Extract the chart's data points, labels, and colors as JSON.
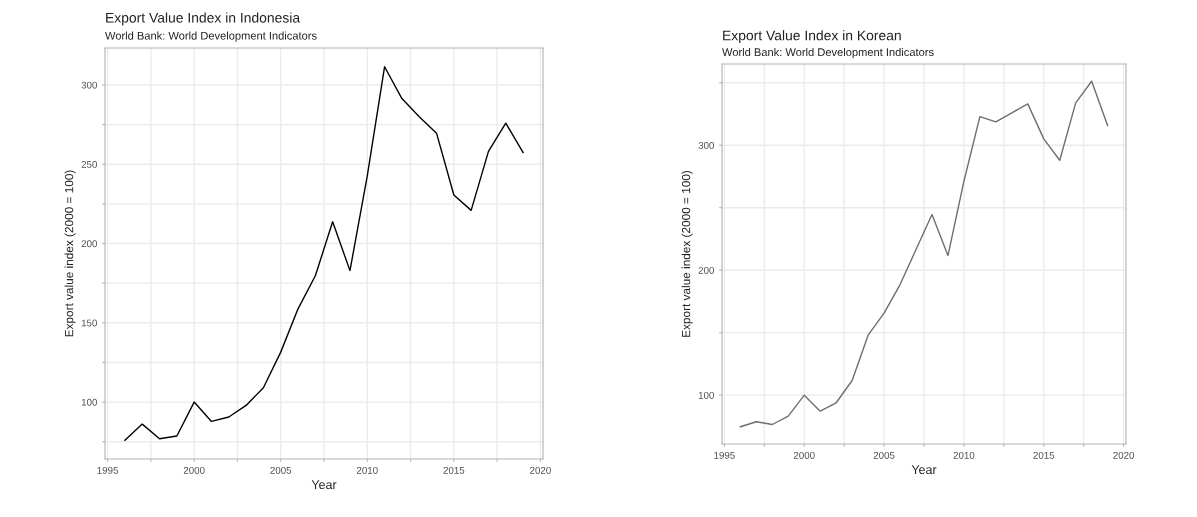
{
  "chart_data": [
    {
      "type": "line",
      "title": "Export Value Index in Indonesia",
      "subtitle": "World Bank: World Development Indicators",
      "xlabel": "Year",
      "ylabel": "Export value index (2000 = 100)",
      "x": [
        1996,
        1997,
        1998,
        1999,
        2000,
        2001,
        2002,
        2003,
        2004,
        2005,
        2006,
        2007,
        2008,
        2009,
        2010,
        2011,
        2012,
        2013,
        2014,
        2015,
        2016,
        2017,
        2018,
        2019
      ],
      "series": [
        {
          "color": "#000000",
          "values": [
            75.9,
            86.1,
            76.9,
            78.6,
            100,
            87.8,
            90.6,
            97.9,
            109,
            131.5,
            158.8,
            179.7,
            213.7,
            182.9,
            242.7,
            311.5,
            291.4,
            280,
            269.6,
            230.6,
            220.9,
            258.1,
            275.9,
            257.4
          ]
        }
      ],
      "xlim": [
        1994.85,
        2020.15
      ],
      "xticks": [
        1995,
        {
          "value": 1997.5,
          "label": null
        },
        2000,
        {
          "value": 2002.5,
          "label": null
        },
        2005,
        {
          "value": 2007.5,
          "label": null
        },
        2010,
        {
          "value": 2012.5,
          "label": null
        },
        2015,
        {
          "value": 2017.5,
          "label": null
        },
        2020
      ],
      "ylim": [
        64.1,
        323.3
      ],
      "yticks": [
        {
          "value": 75,
          "label": null
        },
        100,
        {
          "value": 125,
          "label": null
        },
        150,
        {
          "value": 175,
          "label": null
        },
        200,
        {
          "value": 225,
          "label": null
        },
        250,
        {
          "value": 275,
          "label": null
        },
        300
      ],
      "grid": true,
      "line_style": "solid"
    },
    {
      "type": "line",
      "title": "Export Value Index in Korean",
      "subtitle": "World Bank: World Development Indicators",
      "xlabel": "Year",
      "ylabel": "Export value index (2000 = 100)",
      "x": [
        1996,
        1997,
        1998,
        1999,
        2000,
        2001,
        2002,
        2003,
        2004,
        2005,
        2006,
        2007,
        2008,
        2009,
        2010,
        2011,
        2012,
        2013,
        2014,
        2015,
        2016,
        2017,
        2018,
        2019
      ],
      "series": [
        {
          "color": "#6e6e6e",
          "values": [
            74.7,
            78.7,
            76.5,
            83.2,
            100,
            87.2,
            93.9,
            111.7,
            148,
            165.6,
            188.5,
            216.5,
            244.5,
            211.7,
            271.2,
            322.9,
            318.7,
            325.9,
            333.1,
            305.1,
            288,
            333.9,
            351.2,
            315.7
          ]
        }
      ],
      "xlim": [
        1994.85,
        2020.15
      ],
      "xticks": [
        1995,
        {
          "value": 1997.5,
          "label": null
        },
        2000,
        {
          "value": 2002.5,
          "label": null
        },
        2005,
        {
          "value": 2007.5,
          "label": null
        },
        2010,
        {
          "value": 2012.5,
          "label": null
        },
        2015,
        {
          "value": 2017.5,
          "label": null
        },
        2020
      ],
      "ylim": [
        60.9,
        365
      ],
      "yticks": [
        100,
        {
          "value": 150,
          "label": null
        },
        200,
        {
          "value": 250,
          "label": null
        },
        300,
        {
          "value": 350,
          "label": null
        }
      ],
      "grid": true,
      "line_style": "solid"
    }
  ]
}
